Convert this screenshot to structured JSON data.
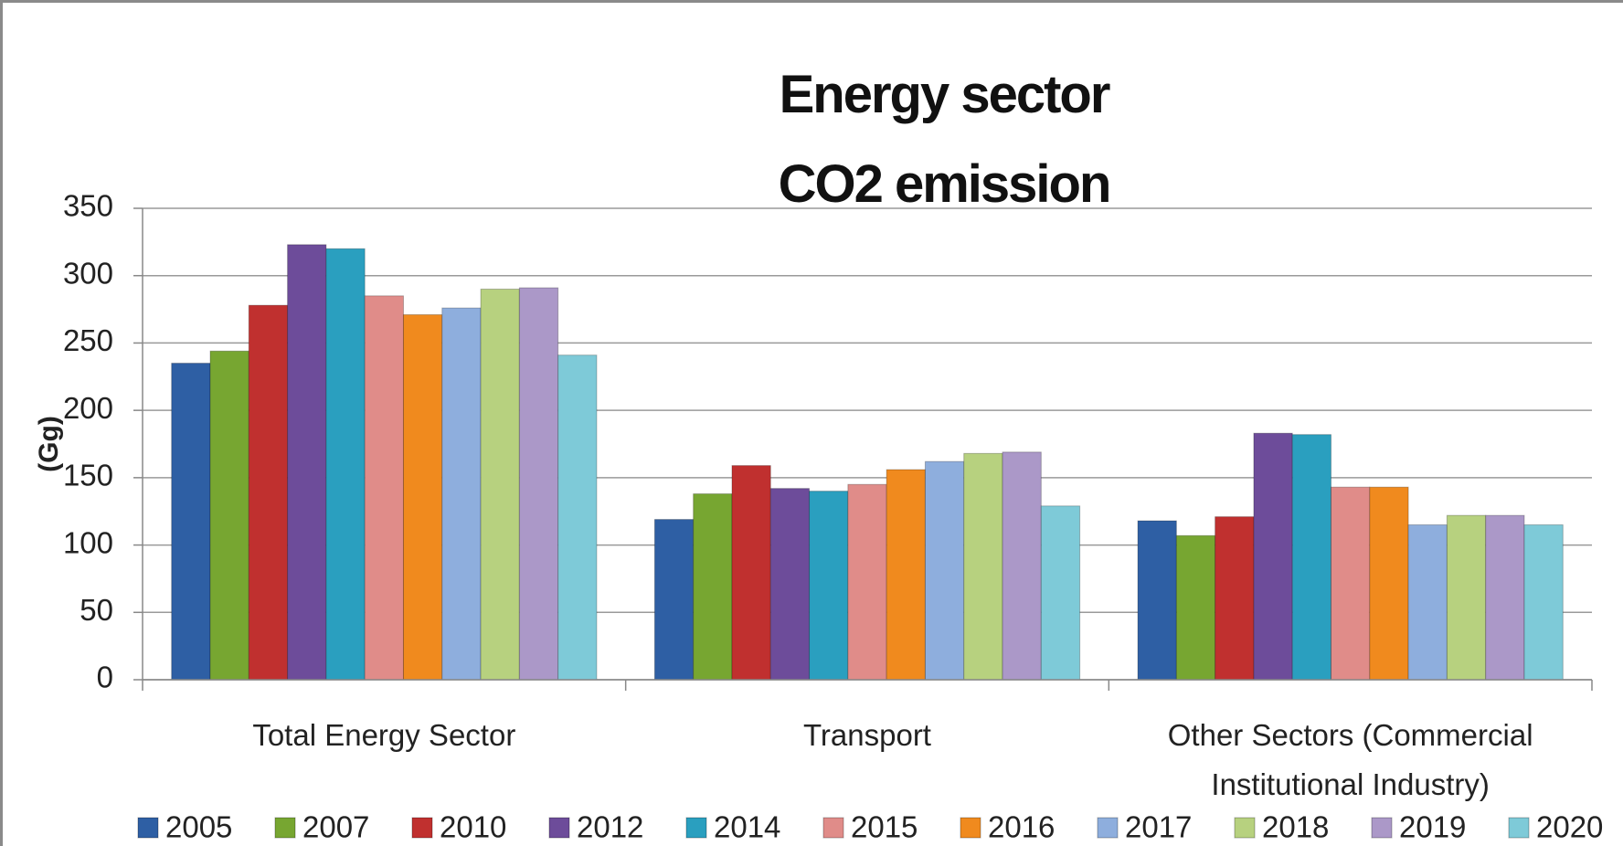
{
  "chart_data": {
    "type": "bar",
    "title": "Energy sector\nCO2 emission",
    "y_label": "(Gg)",
    "categories": [
      "Total Energy Sector",
      "Transport",
      "Other Sectors (Commercial Institutional Industry)"
    ],
    "series": [
      {
        "name": "2005",
        "color": "#2e5fa4",
        "values": [
          235,
          119,
          118
        ]
      },
      {
        "name": "2007",
        "color": "#77a631",
        "values": [
          244,
          138,
          107
        ]
      },
      {
        "name": "2010",
        "color": "#c0302f",
        "values": [
          278,
          159,
          121
        ]
      },
      {
        "name": "2012",
        "color": "#6d4c9a",
        "values": [
          323,
          142,
          183
        ]
      },
      {
        "name": "2014",
        "color": "#2a9fbf",
        "values": [
          320,
          140,
          182
        ]
      },
      {
        "name": "2015",
        "color": "#e08c89",
        "values": [
          285,
          145,
          143
        ]
      },
      {
        "name": "2016",
        "color": "#f08a1e",
        "values": [
          271,
          156,
          143
        ]
      },
      {
        "name": "2017",
        "color": "#8eaedd",
        "values": [
          276,
          162,
          115
        ]
      },
      {
        "name": "2018",
        "color": "#b7d17f",
        "values": [
          290,
          168,
          122
        ]
      },
      {
        "name": "2019",
        "color": "#ab98c8",
        "values": [
          291,
          169,
          122
        ]
      },
      {
        "name": "2020",
        "color": "#7ecad8",
        "values": [
          241,
          129,
          115
        ]
      }
    ],
    "ylim": [
      0,
      350
    ],
    "yticks": [
      0,
      50,
      100,
      150,
      200,
      250,
      300,
      350
    ],
    "grid": true,
    "legend": "bottom"
  }
}
